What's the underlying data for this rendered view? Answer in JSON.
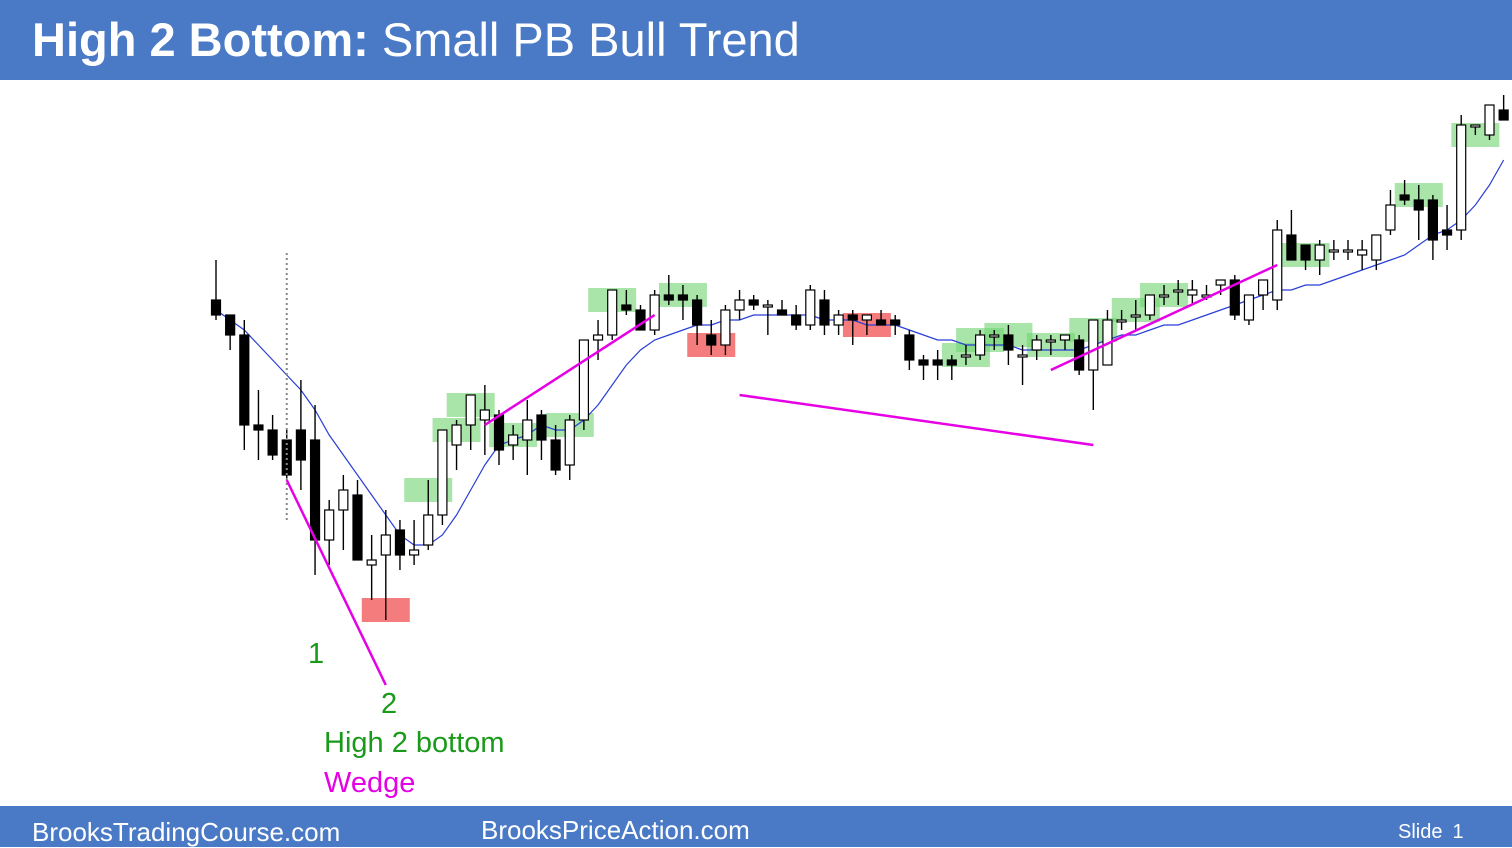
{
  "slide": {
    "title_bold": "High 2 Bottom:",
    "title_rest": "Small PB Bull Trend",
    "footer_left": "BrooksTradingCourse.com",
    "footer_center": "BrooksPriceAction.com",
    "slide_label": "Slide",
    "slide_number": "1",
    "colors": {
      "header": "#4a7ac6",
      "bull_box": "#6fd46f",
      "bear_box": "#f05050",
      "trendline": "#e600e6",
      "ema": "#2a3fd6",
      "label_green": "#1a9a1a"
    }
  },
  "annotations": {
    "leg1": "1",
    "leg2": "2",
    "pattern": "High 2 bottom",
    "shape": "Wedge"
  },
  "chart_data": {
    "type": "candlestick",
    "title": "",
    "xlabel": "",
    "ylabel": "",
    "axes_visible": false,
    "grid": false,
    "ylim": [
      0,
      100
    ],
    "bars": [
      {
        "o": 80,
        "h": 88,
        "l": 76,
        "c": 77
      },
      {
        "o": 77,
        "h": 76,
        "l": 70,
        "c": 73
      },
      {
        "o": 73,
        "h": 76,
        "l": 50,
        "c": 55
      },
      {
        "o": 55,
        "h": 62,
        "l": 48,
        "c": 54
      },
      {
        "o": 54,
        "h": 57,
        "l": 48,
        "c": 49
      },
      {
        "o": 52,
        "h": 54,
        "l": 44,
        "c": 45
      },
      {
        "o": 54,
        "h": 64,
        "l": 42,
        "c": 48
      },
      {
        "o": 52,
        "h": 59,
        "l": 25,
        "c": 32
      },
      {
        "o": 32,
        "h": 40,
        "l": 27,
        "c": 38
      },
      {
        "o": 38,
        "h": 45,
        "l": 30,
        "c": 42
      },
      {
        "o": 41,
        "h": 44,
        "l": 28,
        "c": 28
      },
      {
        "o": 27,
        "h": 33,
        "l": 20,
        "c": 28
      },
      {
        "o": 29,
        "h": 38,
        "l": 16,
        "c": 33
      },
      {
        "o": 34,
        "h": 36,
        "l": 26,
        "c": 29
      },
      {
        "o": 29,
        "h": 36,
        "l": 27,
        "c": 30
      },
      {
        "o": 31,
        "h": 44,
        "l": 30,
        "c": 37
      },
      {
        "o": 37,
        "h": 54,
        "l": 35,
        "c": 54
      },
      {
        "o": 51,
        "h": 56,
        "l": 46,
        "c": 55
      },
      {
        "o": 55,
        "h": 61,
        "l": 50,
        "c": 61
      },
      {
        "o": 56,
        "h": 63,
        "l": 49,
        "c": 58
      },
      {
        "o": 57,
        "h": 58,
        "l": 47,
        "c": 50
      },
      {
        "o": 51,
        "h": 55,
        "l": 48,
        "c": 53
      },
      {
        "o": 52,
        "h": 60,
        "l": 45,
        "c": 56
      },
      {
        "o": 57,
        "h": 58,
        "l": 48,
        "c": 52
      },
      {
        "o": 52,
        "h": 55,
        "l": 45,
        "c": 46
      },
      {
        "o": 47,
        "h": 57,
        "l": 44,
        "c": 56
      },
      {
        "o": 56,
        "h": 72,
        "l": 54,
        "c": 72
      },
      {
        "o": 72,
        "h": 76,
        "l": 68,
        "c": 73
      },
      {
        "o": 73,
        "h": 82,
        "l": 72,
        "c": 82
      },
      {
        "o": 79,
        "h": 82,
        "l": 77,
        "c": 78
      },
      {
        "o": 78,
        "h": 79,
        "l": 74,
        "c": 74
      },
      {
        "o": 74,
        "h": 82,
        "l": 73,
        "c": 81
      },
      {
        "o": 81,
        "h": 85,
        "l": 79,
        "c": 80
      },
      {
        "o": 81,
        "h": 83,
        "l": 76,
        "c": 80
      },
      {
        "o": 80,
        "h": 81,
        "l": 71,
        "c": 75
      },
      {
        "o": 73,
        "h": 76,
        "l": 69,
        "c": 71
      },
      {
        "o": 71,
        "h": 79,
        "l": 69,
        "c": 78
      },
      {
        "o": 78,
        "h": 82,
        "l": 76,
        "c": 80
      },
      {
        "o": 80,
        "h": 81,
        "l": 78,
        "c": 79
      },
      {
        "o": 79,
        "h": 80,
        "l": 73,
        "c": 79
      },
      {
        "o": 78,
        "h": 80,
        "l": 77,
        "c": 77
      },
      {
        "o": 77,
        "h": 79,
        "l": 74,
        "c": 75
      },
      {
        "o": 75,
        "h": 83,
        "l": 74,
        "c": 82
      },
      {
        "o": 80,
        "h": 82,
        "l": 73,
        "c": 75
      },
      {
        "o": 75,
        "h": 78,
        "l": 73,
        "c": 77
      },
      {
        "o": 77,
        "h": 78,
        "l": 71,
        "c": 76
      },
      {
        "o": 76,
        "h": 77,
        "l": 73,
        "c": 77
      },
      {
        "o": 76,
        "h": 78,
        "l": 75,
        "c": 75
      },
      {
        "o": 76,
        "h": 77,
        "l": 73,
        "c": 75
      },
      {
        "o": 73,
        "h": 74,
        "l": 66,
        "c": 68
      },
      {
        "o": 68,
        "h": 69,
        "l": 64,
        "c": 67
      },
      {
        "o": 68,
        "h": 70,
        "l": 64,
        "c": 67
      },
      {
        "o": 68,
        "h": 69,
        "l": 64,
        "c": 67
      },
      {
        "o": 69,
        "h": 71,
        "l": 67,
        "c": 69
      },
      {
        "o": 69,
        "h": 74,
        "l": 68,
        "c": 73
      },
      {
        "o": 73,
        "h": 74,
        "l": 70,
        "c": 73
      },
      {
        "o": 73,
        "h": 75,
        "l": 67,
        "c": 70
      },
      {
        "o": 69,
        "h": 71,
        "l": 63,
        "c": 69
      },
      {
        "o": 70,
        "h": 73,
        "l": 68,
        "c": 72
      },
      {
        "o": 72,
        "h": 73,
        "l": 69,
        "c": 72
      },
      {
        "o": 72,
        "h": 73,
        "l": 70,
        "c": 73
      },
      {
        "o": 72,
        "h": 73,
        "l": 65,
        "c": 66
      },
      {
        "o": 66,
        "h": 76,
        "l": 58,
        "c": 76
      },
      {
        "o": 67,
        "h": 78,
        "l": 68,
        "c": 76
      },
      {
        "o": 76,
        "h": 78,
        "l": 74,
        "c": 76
      },
      {
        "o": 77,
        "h": 80,
        "l": 74,
        "c": 77
      },
      {
        "o": 77,
        "h": 81,
        "l": 76,
        "c": 81
      },
      {
        "o": 81,
        "h": 83,
        "l": 79,
        "c": 81
      },
      {
        "o": 82,
        "h": 84,
        "l": 79,
        "c": 82
      },
      {
        "o": 81,
        "h": 84,
        "l": 79,
        "c": 82
      },
      {
        "o": 81,
        "h": 83,
        "l": 80,
        "c": 81
      },
      {
        "o": 83,
        "h": 84,
        "l": 81,
        "c": 84
      },
      {
        "o": 84,
        "h": 85,
        "l": 76,
        "c": 77
      },
      {
        "o": 76,
        "h": 81,
        "l": 75,
        "c": 81
      },
      {
        "o": 81,
        "h": 84,
        "l": 78,
        "c": 84
      },
      {
        "o": 80,
        "h": 96,
        "l": 78,
        "c": 94
      },
      {
        "o": 93,
        "h": 98,
        "l": 88,
        "c": 88
      },
      {
        "o": 91,
        "h": 91,
        "l": 86,
        "c": 88
      },
      {
        "o": 88,
        "h": 92,
        "l": 85,
        "c": 91
      },
      {
        "o": 90,
        "h": 92,
        "l": 88,
        "c": 90
      },
      {
        "o": 90,
        "h": 92,
        "l": 88,
        "c": 90
      },
      {
        "o": 89,
        "h": 92,
        "l": 86,
        "c": 90
      },
      {
        "o": 88,
        "h": 93,
        "l": 86,
        "c": 93
      },
      {
        "o": 94,
        "h": 102,
        "l": 93,
        "c": 99
      },
      {
        "o": 101,
        "h": 104,
        "l": 99,
        "c": 100
      },
      {
        "o": 100,
        "h": 103,
        "l": 92,
        "c": 98
      },
      {
        "o": 100,
        "h": 101,
        "l": 88,
        "c": 92
      },
      {
        "o": 94,
        "h": 99,
        "l": 90,
        "c": 93
      },
      {
        "o": 94,
        "h": 117,
        "l": 92,
        "c": 115
      },
      {
        "o": 115,
        "h": 115,
        "l": 113,
        "c": 115
      },
      {
        "o": 113,
        "h": 119,
        "l": 112,
        "c": 119
      },
      {
        "o": 118,
        "h": 121,
        "l": 116,
        "c": 116
      }
    ],
    "ema_20": [
      78,
      76,
      74,
      71,
      68,
      65,
      62,
      58,
      53,
      49,
      45,
      41,
      37,
      33,
      31,
      31,
      33,
      37,
      42,
      47,
      51,
      52,
      53,
      55,
      54,
      54,
      56,
      59,
      63,
      67,
      70,
      72,
      73,
      74,
      75,
      75,
      76,
      76,
      77,
      77,
      77,
      77,
      77,
      76,
      76,
      76,
      75,
      75,
      75,
      74,
      73,
      72,
      72,
      71,
      71,
      71,
      71,
      70,
      70,
      70,
      70,
      70,
      71,
      72,
      73,
      73,
      74,
      75,
      75,
      76,
      77,
      78,
      79,
      80,
      81,
      82,
      82,
      83,
      83,
      84,
      85,
      86,
      87,
      88,
      89,
      91,
      93,
      94,
      96,
      99,
      103,
      108
    ],
    "signals": {
      "bull_setup_bars": [
        15,
        17,
        18,
        21,
        25,
        28,
        33,
        53,
        54,
        56,
        59,
        62,
        65,
        67,
        77,
        85,
        89
      ],
      "bear_setup_bars": [
        12,
        35,
        46
      ]
    },
    "legend": []
  }
}
